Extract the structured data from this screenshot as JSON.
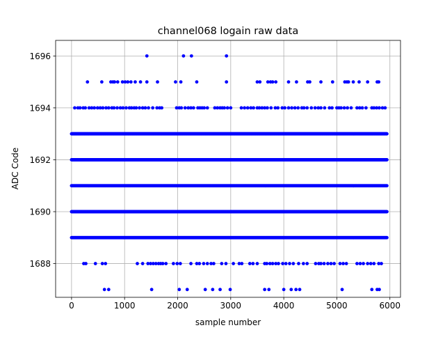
{
  "chart_data": {
    "type": "scatter",
    "title": "channel068 logain raw data",
    "xlabel": "sample number",
    "ylabel": "ADC Code",
    "xlim": [
      -300,
      6200
    ],
    "ylim": [
      1686.7,
      1696.6
    ],
    "xticks": [
      0,
      1000,
      2000,
      3000,
      4000,
      5000,
      6000
    ],
    "yticks": [
      1688,
      1690,
      1692,
      1694,
      1696
    ],
    "grid": true,
    "marker_color": "#0000ff",
    "dense_levels": [
      1689,
      1690,
      1691,
      1692,
      1693
    ],
    "dense_x_range": [
      0,
      5950
    ],
    "sparse_points": {
      "1696": [
        1420,
        2110,
        2260,
        2920
      ],
      "1695": [
        300,
        570,
        740,
        780,
        810,
        870,
        960,
        1010,
        1060,
        1120,
        1200,
        1300,
        1420,
        1620,
        1960,
        2060,
        2360,
        2920,
        3500,
        3550,
        3700,
        3750,
        3790,
        3850,
        4090,
        4240,
        4450,
        4490,
        4700,
        4920,
        5150,
        5190,
        5220,
        5310,
        5420,
        5580,
        5760,
        5790
      ],
      "1694": [
        60,
        120,
        160,
        220,
        260,
        330,
        380,
        430,
        490,
        540,
        590,
        650,
        700,
        760,
        800,
        860,
        920,
        970,
        1030,
        1090,
        1130,
        1180,
        1220,
        1280,
        1340,
        1390,
        1450,
        1530,
        1610,
        1660,
        1700,
        1980,
        2030,
        2070,
        2140,
        2200,
        2250,
        2300,
        2380,
        2420,
        2460,
        2500,
        2560,
        2700,
        2750,
        2800,
        2840,
        2880,
        2940,
        3000,
        3200,
        3260,
        3320,
        3380,
        3430,
        3500,
        3540,
        3590,
        3640,
        3690,
        3760,
        3840,
        3890,
        3970,
        4020,
        4090,
        4150,
        4210,
        4270,
        4340,
        4380,
        4440,
        4520,
        4590,
        4650,
        4700,
        4770,
        4860,
        4910,
        5000,
        5040,
        5080,
        5140,
        5200,
        5270,
        5380,
        5430,
        5480,
        5550,
        5660,
        5700,
        5750,
        5800,
        5860,
        5910
      ],
      "1688": [
        230,
        270,
        450,
        580,
        640,
        1240,
        1340,
        1440,
        1490,
        1540,
        1590,
        1640,
        1680,
        1720,
        1780,
        1920,
        1990,
        2050,
        2250,
        2360,
        2410,
        2490,
        2560,
        2630,
        2680,
        2830,
        2910,
        3050,
        3160,
        3210,
        3360,
        3420,
        3500,
        3640,
        3680,
        3740,
        3790,
        3850,
        3900,
        3980,
        4040,
        4110,
        4180,
        4280,
        4370,
        4440,
        4600,
        4660,
        4700,
        4760,
        4830,
        4890,
        4950,
        5060,
        5120,
        5180,
        5380,
        5440,
        5500,
        5580,
        5640,
        5700,
        5790,
        5840
      ],
      "1687": [
        620,
        700,
        1510,
        2030,
        2180,
        2520,
        2660,
        2800,
        2990,
        3640,
        3720,
        4000,
        4140,
        4230,
        4300,
        5100,
        5660,
        5760,
        5800
      ]
    }
  }
}
